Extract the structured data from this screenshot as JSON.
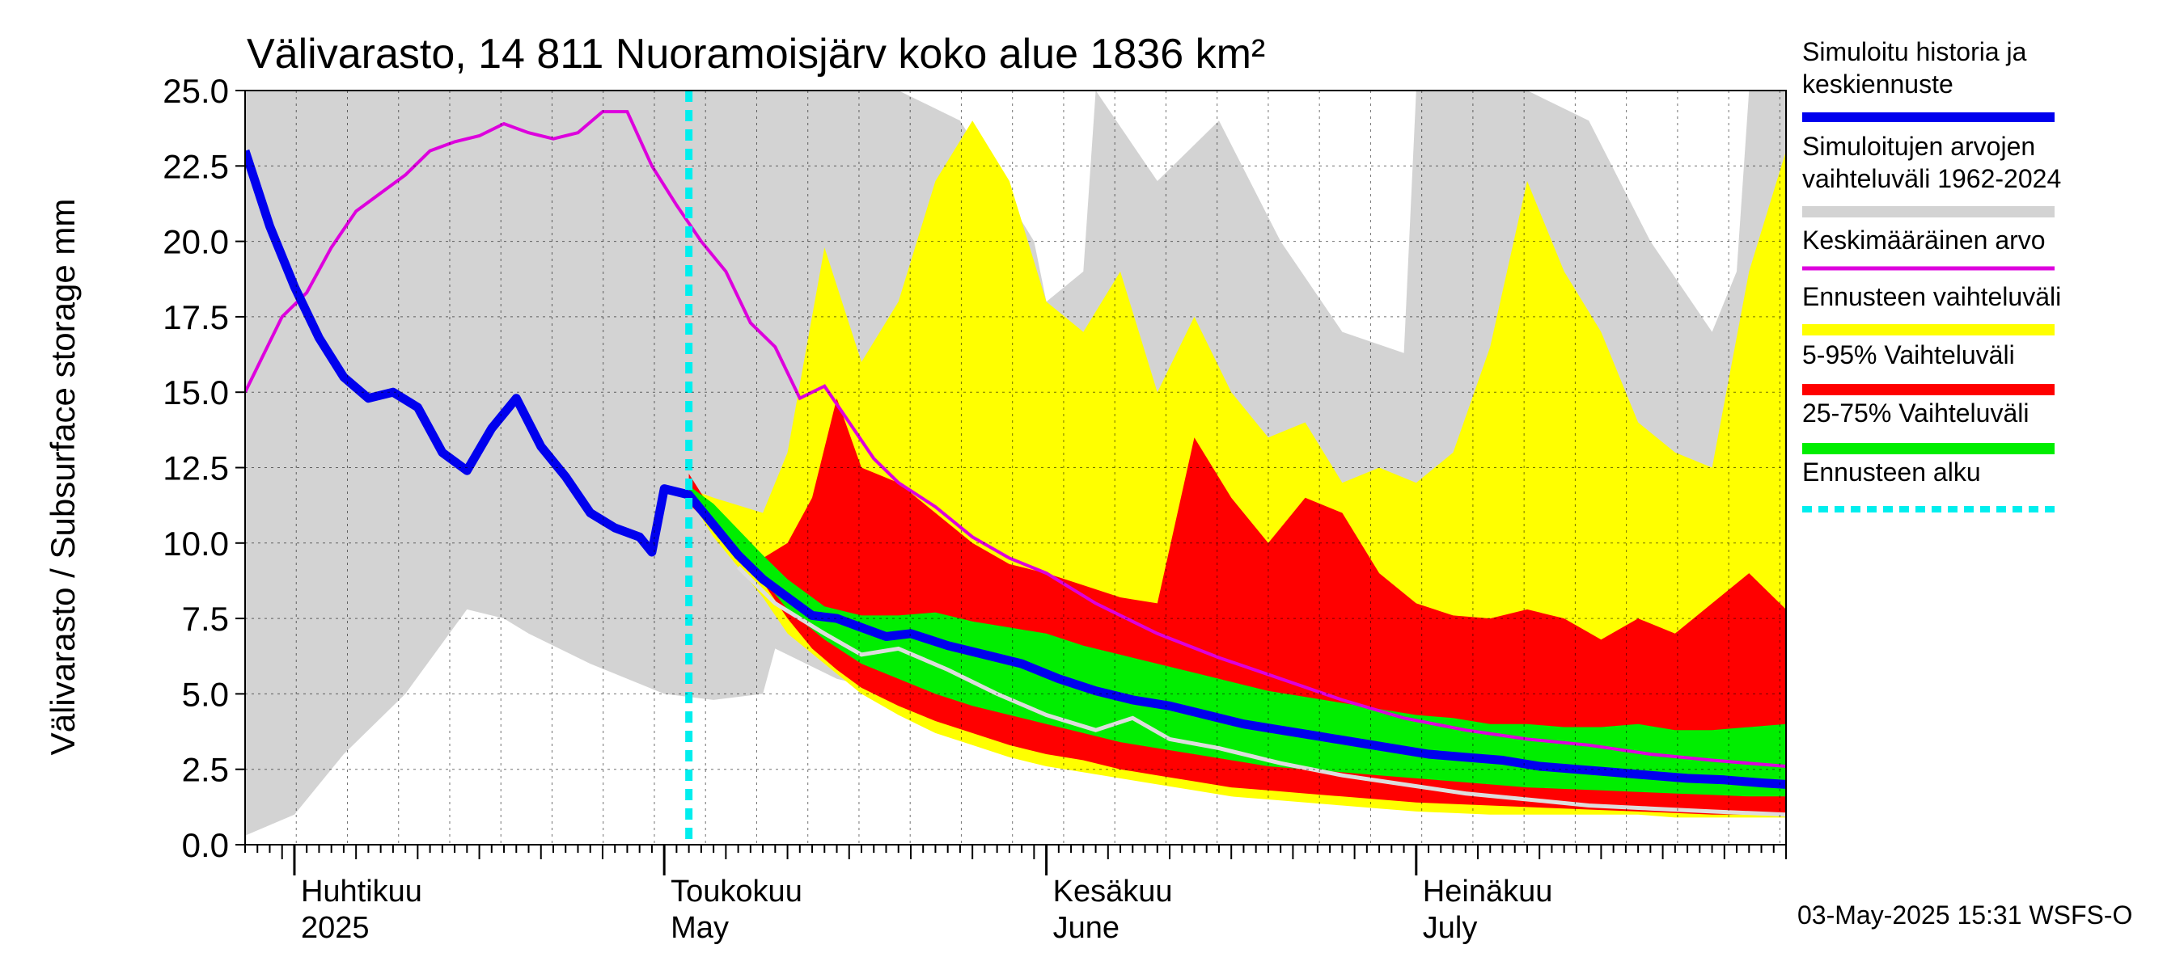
{
  "chart_data": {
    "type": "area",
    "title": "Välivarasto, 14 811 Nuoramoisjärv koko alue 1836 km²",
    "ylabel": "Välivarasto / Subsurface storage  mm",
    "ylim": [
      0,
      25
    ],
    "yticks": [
      "0.0",
      "2.5",
      "5.0",
      "7.5",
      "10.0",
      "12.5",
      "15.0",
      "17.5",
      "20.0",
      "22.5",
      "25.0"
    ],
    "xlim": [
      "2025-03-28",
      "2025-07-31"
    ],
    "grid": true,
    "month_labels": [
      {
        "fi": "Huhtikuu",
        "en": "2025",
        "date": "2025-04-01"
      },
      {
        "fi": "Toukokuu",
        "en": "May",
        "date": "2025-05-01"
      },
      {
        "fi": "Kesäkuu",
        "en": "June",
        "date": "2025-06-01"
      },
      {
        "fi": "Heinäkuu",
        "en": "July",
        "date": "2025-07-01"
      }
    ],
    "forecast_start": "2025-05-03",
    "legend": [
      {
        "label": "Simuloitu historia ja keskiennuste",
        "color": "#0000ee"
      },
      {
        "label": "Simuloitujen arvojen vaihteluväli 1962-2024",
        "color": "#d3d3d3"
      },
      {
        "label": "Keskimääräinen arvo",
        "color": "#dd00dd"
      },
      {
        "label": "Ennusteen vaihteluväli",
        "color": "#ffff00"
      },
      {
        "label": "5-95% Vaihteluväli",
        "color": "#ff0000"
      },
      {
        "label": "25-75% Vaihteluväli",
        "color": "#00ee00"
      },
      {
        "label": "Ennusteen alku",
        "color": "#00eeee"
      }
    ],
    "footer": "03-May-2025 15:31 WSFS-O",
    "series": [
      {
        "id": "history_range",
        "x": [
          "03-28",
          "04-01",
          "04-05",
          "04-10",
          "04-15",
          "04-18",
          "04-20",
          "04-25",
          "05-01",
          "05-05",
          "05-09",
          "05-10",
          "05-15",
          "05-20",
          "05-25",
          "05-31",
          "06-01",
          "06-04",
          "06-05",
          "06-10",
          "06-15",
          "06-20",
          "06-25",
          "06-30",
          "07-01",
          "07-05",
          "07-10",
          "07-15",
          "07-20",
          "07-25",
          "07-27",
          "07-28",
          "07-31"
        ],
        "low": [
          0.3,
          1.0,
          3.0,
          5.0,
          7.8,
          7.5,
          7.0,
          6.0,
          5.0,
          4.8,
          5.0,
          6.5,
          5.5,
          5.0,
          5.0,
          5.0,
          5.0,
          5.0,
          5.0,
          5.0,
          5.0,
          5.0,
          5.0,
          5.0,
          5.0,
          5.0,
          5.0,
          5.0,
          5.0,
          5.0,
          5.0,
          5.0,
          5.0
        ],
        "high": [
          25,
          25,
          25,
          25,
          25,
          25,
          25,
          25,
          25,
          25,
          25,
          25,
          25,
          25,
          24,
          20,
          18,
          19,
          25,
          22,
          24,
          20,
          17,
          16.3,
          25,
          25,
          25,
          24,
          20,
          17,
          19,
          25,
          25
        ]
      },
      {
        "id": "forecast_range",
        "x": [
          "05-03",
          "05-05",
          "05-09",
          "05-11",
          "05-14",
          "05-17",
          "05-20",
          "05-23",
          "05-26",
          "05-29",
          "06-01",
          "06-04",
          "06-07",
          "06-10",
          "06-13",
          "06-16",
          "06-19",
          "06-22",
          "06-25",
          "06-28",
          "07-01",
          "07-04",
          "07-07",
          "07-10",
          "07-13",
          "07-16",
          "07-19",
          "07-22",
          "07-25",
          "07-28",
          "07-31"
        ],
        "low": [
          11.5,
          10.2,
          8.2,
          7.0,
          6.0,
          5.0,
          4.3,
          3.7,
          3.3,
          2.9,
          2.6,
          2.4,
          2.2,
          2.0,
          1.8,
          1.6,
          1.5,
          1.4,
          1.3,
          1.2,
          1.1,
          1.05,
          1.0,
          1.0,
          1.0,
          1.0,
          1.0,
          0.9,
          0.9,
          0.9,
          0.9
        ],
        "high": [
          11.8,
          11.5,
          11.0,
          13.0,
          19.8,
          16.0,
          18.0,
          22.0,
          24.0,
          22.0,
          18.0,
          17.0,
          19.0,
          15.0,
          17.5,
          15.0,
          13.5,
          14.0,
          12.0,
          12.5,
          12.0,
          13.0,
          16.5,
          22.0,
          19.0,
          17.0,
          14.0,
          13.0,
          12.5,
          19.0,
          23.0
        ]
      },
      {
        "id": "band_5_95",
        "x": [
          "05-03",
          "05-05",
          "05-09",
          "05-11",
          "05-13",
          "05-15",
          "05-17",
          "05-20",
          "05-23",
          "05-26",
          "05-29",
          "06-01",
          "06-04",
          "06-07",
          "06-10",
          "06-13",
          "06-16",
          "06-19",
          "06-22",
          "06-25",
          "06-28",
          "07-01",
          "07-04",
          "07-07",
          "07-10",
          "07-13",
          "07-16",
          "07-19",
          "07-22",
          "07-25",
          "07-28",
          "07-31"
        ],
        "low": [
          11.3,
          10.5,
          8.7,
          7.5,
          6.5,
          5.8,
          5.2,
          4.6,
          4.1,
          3.7,
          3.3,
          3.0,
          2.8,
          2.5,
          2.3,
          2.1,
          1.9,
          1.8,
          1.7,
          1.6,
          1.5,
          1.4,
          1.35,
          1.3,
          1.25,
          1.2,
          1.15,
          1.1,
          1.05,
          1.0,
          1.0,
          1.0
        ],
        "high": [
          12.3,
          11.0,
          9.5,
          10.0,
          11.5,
          14.8,
          12.5,
          12.0,
          11.0,
          10.0,
          9.3,
          9.0,
          8.6,
          8.2,
          8.0,
          13.5,
          11.5,
          10.0,
          11.5,
          11.0,
          9.0,
          8.0,
          7.6,
          7.5,
          7.8,
          7.5,
          6.8,
          7.5,
          7.0,
          8.0,
          9.0,
          7.8
        ]
      },
      {
        "id": "band_25_75",
        "x": [
          "05-03",
          "05-05",
          "05-09",
          "05-11",
          "05-14",
          "05-17",
          "05-20",
          "05-23",
          "05-26",
          "05-29",
          "06-01",
          "06-04",
          "06-07",
          "06-10",
          "06-13",
          "06-16",
          "06-19",
          "06-22",
          "06-25",
          "06-28",
          "07-01",
          "07-04",
          "07-07",
          "07-10",
          "07-13",
          "07-16",
          "07-19",
          "07-22",
          "07-25",
          "07-28",
          "07-31"
        ],
        "low": [
          11.6,
          10.5,
          8.8,
          7.8,
          6.8,
          6.0,
          5.5,
          5.0,
          4.6,
          4.3,
          4.0,
          3.7,
          3.4,
          3.2,
          3.0,
          2.8,
          2.6,
          2.5,
          2.4,
          2.3,
          2.2,
          2.1,
          2.0,
          1.9,
          1.85,
          1.8,
          1.75,
          1.7,
          1.65,
          1.6,
          1.6
        ],
        "high": [
          11.9,
          11.3,
          9.6,
          8.8,
          7.9,
          7.6,
          7.6,
          7.7,
          7.4,
          7.2,
          7.0,
          6.6,
          6.3,
          6.0,
          5.7,
          5.4,
          5.1,
          4.9,
          4.7,
          4.5,
          4.3,
          4.2,
          4.0,
          4.0,
          3.9,
          3.9,
          4.0,
          3.8,
          3.8,
          3.9,
          4.0
        ]
      },
      {
        "id": "mean",
        "x": [
          "03-28",
          "03-31",
          "04-02",
          "04-04",
          "04-06",
          "04-08",
          "04-10",
          "04-12",
          "04-14",
          "04-16",
          "04-18",
          "04-20",
          "04-22",
          "04-24",
          "04-26",
          "04-28",
          "04-30",
          "05-02",
          "05-04",
          "05-06",
          "05-08",
          "05-10",
          "05-12",
          "05-14",
          "05-16",
          "05-18",
          "05-20",
          "05-23",
          "05-26",
          "05-29",
          "06-01",
          "06-05",
          "06-10",
          "06-15",
          "06-20",
          "06-25",
          "06-30",
          "07-05",
          "07-10",
          "07-15",
          "07-20",
          "07-25",
          "07-31"
        ],
        "values": [
          15.0,
          17.5,
          18.3,
          19.8,
          21.0,
          21.6,
          22.2,
          23.0,
          23.3,
          23.5,
          23.9,
          23.6,
          23.4,
          23.6,
          24.3,
          24.3,
          22.5,
          21.2,
          20.0,
          19.0,
          17.3,
          16.5,
          14.8,
          15.2,
          14.0,
          12.8,
          12.0,
          11.2,
          10.2,
          9.5,
          9.0,
          8.0,
          7.0,
          6.2,
          5.5,
          4.8,
          4.2,
          3.8,
          3.5,
          3.3,
          3.0,
          2.8,
          2.6
        ]
      },
      {
        "id": "median_forecast",
        "x": [
          "03-28",
          "03-30",
          "04-01",
          "04-03",
          "04-05",
          "04-07",
          "04-09",
          "04-11",
          "04-13",
          "04-15",
          "04-17",
          "04-19",
          "04-21",
          "04-23",
          "04-25",
          "04-27",
          "04-29",
          "04-30",
          "05-01",
          "05-03",
          "05-05",
          "05-07",
          "05-09",
          "05-11",
          "05-13",
          "05-15",
          "05-17",
          "05-19",
          "05-21",
          "05-24",
          "05-27",
          "05-30",
          "06-02",
          "06-05",
          "06-08",
          "06-11",
          "06-14",
          "06-17",
          "06-20",
          "06-23",
          "06-26",
          "06-29",
          "07-02",
          "07-05",
          "07-08",
          "07-11",
          "07-14",
          "07-17",
          "07-20",
          "07-23",
          "07-26",
          "07-29",
          "07-31"
        ],
        "values": [
          23.0,
          20.5,
          18.5,
          16.8,
          15.5,
          14.8,
          15.0,
          14.5,
          13.0,
          12.4,
          13.8,
          14.8,
          13.2,
          12.2,
          11.0,
          10.5,
          10.2,
          9.7,
          11.8,
          11.6,
          10.6,
          9.6,
          8.8,
          8.2,
          7.6,
          7.5,
          7.2,
          6.9,
          7.0,
          6.6,
          6.3,
          6.0,
          5.5,
          5.1,
          4.8,
          4.6,
          4.3,
          4.0,
          3.8,
          3.6,
          3.4,
          3.2,
          3.0,
          2.9,
          2.8,
          2.6,
          2.5,
          2.4,
          2.3,
          2.2,
          2.15,
          2.05,
          2.0
        ]
      },
      {
        "id": "white_line",
        "x": [
          "05-07",
          "05-10",
          "05-14",
          "05-17",
          "05-20",
          "05-24",
          "05-28",
          "06-01",
          "06-05",
          "06-08",
          "06-11",
          "06-15",
          "06-20",
          "06-25",
          "06-30",
          "07-05",
          "07-10",
          "07-15",
          "07-20",
          "07-25",
          "07-31"
        ],
        "values": [
          9.2,
          8.0,
          7.0,
          6.3,
          6.5,
          5.8,
          5.0,
          4.3,
          3.8,
          4.2,
          3.5,
          3.2,
          2.7,
          2.3,
          2.0,
          1.7,
          1.5,
          1.3,
          1.2,
          1.1,
          1.0
        ]
      }
    ]
  }
}
